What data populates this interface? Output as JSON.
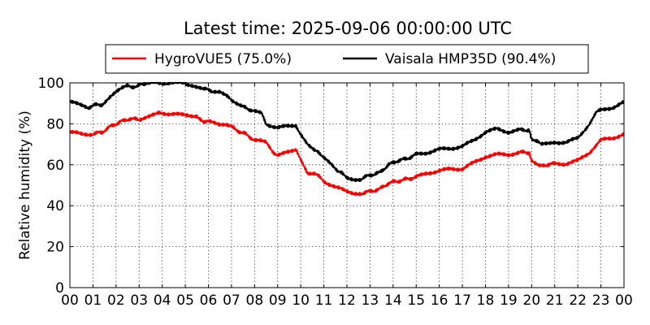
{
  "chart_data": {
    "type": "line",
    "title": "Latest time: 2025-09-06 00:00:00 UTC",
    "xlabel": "",
    "ylabel": "Relative humidity (%)",
    "xlim": [
      0,
      24
    ],
    "ylim": [
      0,
      100
    ],
    "x_tick_values": [
      0,
      1,
      2,
      3,
      4,
      5,
      6,
      7,
      8,
      9,
      10,
      11,
      12,
      13,
      14,
      15,
      16,
      17,
      18,
      19,
      20,
      21,
      22,
      23,
      24
    ],
    "x_tick_labels": [
      "00",
      "01",
      "02",
      "03",
      "04",
      "05",
      "06",
      "07",
      "08",
      "09",
      "10",
      "11",
      "12",
      "13",
      "14",
      "15",
      "16",
      "17",
      "18",
      "19",
      "20",
      "21",
      "22",
      "23",
      "00"
    ],
    "y_tick_values": [
      0,
      20,
      40,
      60,
      80,
      100
    ],
    "y_tick_labels": [
      "0",
      "20",
      "40",
      "60",
      "80",
      "100"
    ],
    "grid": true,
    "legend_position": "top-center, above plot",
    "series": [
      {
        "name": "HygroVUE5 (75.0%)",
        "color": "#ff0000",
        "points": [
          [
            0,
            76
          ],
          [
            0.5,
            75
          ],
          [
            1,
            75
          ],
          [
            1.4,
            76
          ],
          [
            1.8,
            79
          ],
          [
            2.2,
            81
          ],
          [
            2.6,
            82.5
          ],
          [
            3,
            82
          ],
          [
            3.3,
            83.5
          ],
          [
            3.6,
            85
          ],
          [
            4,
            85
          ],
          [
            4.5,
            85
          ],
          [
            5,
            84
          ],
          [
            5.5,
            84
          ],
          [
            5.8,
            81
          ],
          [
            6,
            81
          ],
          [
            6.5,
            80
          ],
          [
            6.8,
            80
          ],
          [
            7.2,
            77
          ],
          [
            7.6,
            75
          ],
          [
            8,
            72
          ],
          [
            8.5,
            71
          ],
          [
            8.8,
            66
          ],
          [
            9,
            65
          ],
          [
            9.5,
            66
          ],
          [
            9.8,
            67
          ],
          [
            10,
            63
          ],
          [
            10.3,
            56
          ],
          [
            10.6,
            56
          ],
          [
            11,
            52
          ],
          [
            11.5,
            49
          ],
          [
            12,
            47
          ],
          [
            12.3,
            46
          ],
          [
            12.6,
            46
          ],
          [
            13,
            47
          ],
          [
            13.4,
            48
          ],
          [
            13.8,
            51
          ],
          [
            14.2,
            52
          ],
          [
            14.6,
            53
          ],
          [
            15,
            54
          ],
          [
            15.5,
            56
          ],
          [
            16,
            57
          ],
          [
            16.5,
            58
          ],
          [
            17,
            58
          ],
          [
            17.5,
            61
          ],
          [
            18,
            64
          ],
          [
            18.5,
            65
          ],
          [
            19,
            65
          ],
          [
            19.5,
            66
          ],
          [
            19.9,
            66
          ],
          [
            20,
            62
          ],
          [
            20.3,
            60
          ],
          [
            20.6,
            60
          ],
          [
            21,
            60.5
          ],
          [
            21.5,
            60.5
          ],
          [
            22,
            62
          ],
          [
            22.5,
            66
          ],
          [
            23,
            72
          ],
          [
            23.5,
            73
          ],
          [
            24,
            75
          ]
        ]
      },
      {
        "name": "Vaisala HMP35D (90.4%)",
        "color": "#000000",
        "points": [
          [
            0,
            90.5
          ],
          [
            0.5,
            89.5
          ],
          [
            0.8,
            88
          ],
          [
            1,
            89
          ],
          [
            1.4,
            89.5
          ],
          [
            1.7,
            93
          ],
          [
            2,
            96
          ],
          [
            2.5,
            98.5
          ],
          [
            2.9,
            98
          ],
          [
            3.1,
            99.5
          ],
          [
            3.3,
            100
          ],
          [
            4,
            100
          ],
          [
            4.5,
            100
          ],
          [
            5,
            100
          ],
          [
            5.2,
            99
          ],
          [
            5.5,
            98
          ],
          [
            5.8,
            97
          ],
          [
            6.2,
            96
          ],
          [
            6.5,
            96
          ],
          [
            6.8,
            94
          ],
          [
            7,
            91
          ],
          [
            7.3,
            89
          ],
          [
            7.6,
            88
          ],
          [
            8,
            86
          ],
          [
            8.3,
            85
          ],
          [
            8.5,
            80
          ],
          [
            9,
            78
          ],
          [
            9.5,
            79
          ],
          [
            9.8,
            79
          ],
          [
            10,
            75
          ],
          [
            10.3,
            70
          ],
          [
            10.6,
            67
          ],
          [
            11,
            64
          ],
          [
            11.3,
            61
          ],
          [
            11.6,
            57
          ],
          [
            12,
            54
          ],
          [
            12.3,
            53
          ],
          [
            12.6,
            53
          ],
          [
            13,
            55
          ],
          [
            13.4,
            56
          ],
          [
            13.8,
            60
          ],
          [
            14.2,
            62
          ],
          [
            14.6,
            63
          ],
          [
            15,
            65
          ],
          [
            15.5,
            66
          ],
          [
            16,
            67.5
          ],
          [
            16.5,
            68
          ],
          [
            17,
            69
          ],
          [
            17.5,
            72
          ],
          [
            18,
            76
          ],
          [
            18.5,
            77.5
          ],
          [
            19,
            76
          ],
          [
            19.5,
            77
          ],
          [
            19.9,
            77
          ],
          [
            20,
            73
          ],
          [
            20.4,
            70
          ],
          [
            21,
            71
          ],
          [
            21.5,
            71
          ],
          [
            22,
            73
          ],
          [
            22.5,
            80
          ],
          [
            22.8,
            86
          ],
          [
            23,
            86.5
          ],
          [
            23.5,
            88
          ],
          [
            24,
            90.5
          ]
        ]
      }
    ]
  }
}
